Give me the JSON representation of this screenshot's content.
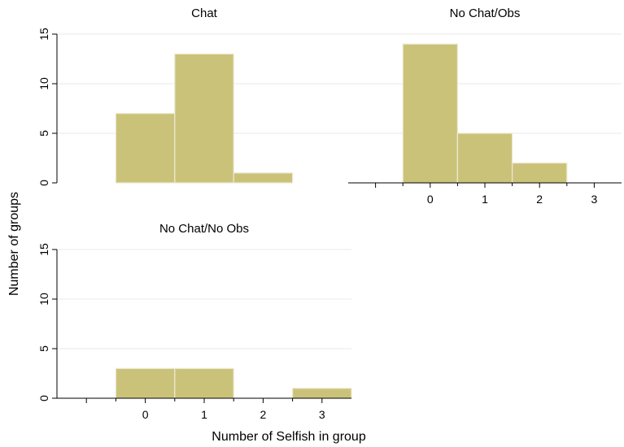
{
  "chart_data": {
    "type": "bar",
    "subtype": "histogram",
    "ylabel": "Number of groups",
    "xlabel": "Number of Selfish in group",
    "ylim": [
      0,
      15
    ],
    "yticks": [
      0,
      5,
      10,
      15
    ],
    "xlim": [
      -1.5,
      3.5
    ],
    "xticks": [
      0,
      1,
      2,
      3
    ],
    "bin_width": 1,
    "bar_color": "#cbc27a",
    "grid": true,
    "panels": [
      {
        "title": "Chat",
        "bins": [
          0,
          1,
          2
        ],
        "values": [
          7,
          13,
          1
        ],
        "show_x_tick_labels": false
      },
      {
        "title": "No Chat/Obs",
        "bins": [
          0,
          1,
          2
        ],
        "values": [
          14,
          5,
          2
        ],
        "show_x_tick_labels": true
      },
      {
        "title": "No Chat/No Obs",
        "bins": [
          0,
          1,
          3
        ],
        "values": [
          3,
          3,
          1
        ],
        "show_x_tick_labels": true
      }
    ]
  }
}
